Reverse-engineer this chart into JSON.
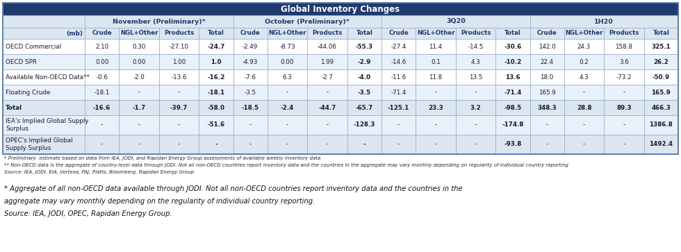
{
  "title": "Global Inventory Changes",
  "col_groups": [
    {
      "label": "November (Preliminary)*",
      "subcols": [
        "Crude",
        "NGL+Other",
        "Products",
        "Total"
      ]
    },
    {
      "label": "October (Preliminary)*",
      "subcols": [
        "Crude",
        "NGL+Other",
        "Products",
        "Total"
      ]
    },
    {
      "label": "3Q20",
      "subcols": [
        "Crude",
        "NGL+Other",
        "Products",
        "Total"
      ]
    },
    {
      "label": "1H20",
      "subcols": [
        "Crude",
        "NGL+Other",
        "Products",
        "Total"
      ]
    }
  ],
  "row_label_header": "(mb)",
  "rows": [
    {
      "label": "OECD Commercial",
      "values": [
        "2.10",
        "0.30",
        "-27.10",
        "-24.7",
        "-2.49",
        "-8.73",
        "-44.06",
        "-55.3",
        "-27.4",
        "11.4",
        "-14.5",
        "-30.6",
        "142.0",
        "24.3",
        "158.8",
        "325.1"
      ],
      "bold_total": true
    },
    {
      "label": "OECD SPR",
      "values": [
        "0.00",
        "0.00",
        "1.00",
        "1.0",
        "-4.93",
        "0.00",
        "1.99",
        "-2.9",
        "-14.6",
        "0.1",
        "4.3",
        "-10.2",
        "22.4",
        "0.2",
        "3.6",
        "26.2"
      ],
      "bold_total": true
    },
    {
      "label": "Available Non-OECD Data**",
      "values": [
        "-0.6",
        "-2.0",
        "-13.6",
        "-16.2",
        "-7.6",
        "6.3",
        "-2.7",
        "-4.0",
        "-11.6",
        "11.8",
        "13.5",
        "13.6",
        "18.0",
        "4.3",
        "-73.2",
        "-50.9"
      ],
      "bold_total": true
    },
    {
      "label": "Floating Crude",
      "values": [
        "-18.1",
        "-",
        "-",
        "-18.1",
        "-3.5",
        "-",
        "-",
        "-3.5",
        "-71.4",
        "-",
        "-",
        "-71.4",
        "165.9",
        "-",
        "-",
        "165.9"
      ],
      "bold_total": true
    },
    {
      "label": "Total",
      "values": [
        "-16.6",
        "-1.7",
        "-39.7",
        "-58.0",
        "-18.5",
        "-2.4",
        "-44.7",
        "-65.7",
        "-125.1",
        "23.3",
        "3.2",
        "-98.5",
        "348.3",
        "28.8",
        "89.3",
        "466.3"
      ],
      "bold_total": true
    },
    {
      "label": "IEA's Implied Global Supply\nSurplus",
      "values": [
        "-",
        "-",
        "-",
        "-51.6",
        "-",
        "-",
        "-",
        "-128.3",
        "-",
        "-",
        "-",
        "-174.8",
        "-",
        "-",
        "-",
        "1386.8"
      ],
      "bold_total": true
    },
    {
      "label": "OPEC's Implied Global\nSupply Surplus",
      "values": [
        "-",
        "-",
        "-",
        "-",
        "-",
        "-",
        "-",
        "-",
        "-",
        "-",
        "-",
        "-93.8",
        "-",
        "-",
        "-",
        "1492.4"
      ],
      "bold_total": true
    }
  ],
  "footnotes": [
    "* Preliminary  estimate based on data from IEA, JODI, and Rapidan Energy Group assessments of available weekly inventory data",
    "** Non-OECD data is the aggregate of country-level data through JODI. Not all non-OECD countries report inventory data and the countries in the aggregate may vary monthly depending on regularity of individual country reporting",
    "Source: IEA, JODI, EIA, Vortexa, PAJ, Platts, Bloomberg, Rapidan Energy Group"
  ],
  "bottom_notes_italic": [
    "* Aggregate of all non-OECD data available through JODI. Not all non-OECD countries report inventory data and the countries in the",
    "aggregate may vary monthly depending on the regularity of individual country reporting.",
    "Source: IEA, JODI, OPEC, Rapidan Energy Group."
  ],
  "header_bg": "#1f3a6e",
  "header_fg": "#ffffff",
  "subheader_bg": "#dce6f1",
  "subheader_fg": "#1f3a6e",
  "row_bg_colors": [
    "#ffffff",
    "#e8f0fa",
    "#ffffff",
    "#e8f0fa",
    "#dce6f1",
    "#e8f0fa",
    "#dce6f1"
  ],
  "border_color": "#8eaacc",
  "cell_text_color": "#1a1a2e",
  "total_row_index": 4
}
